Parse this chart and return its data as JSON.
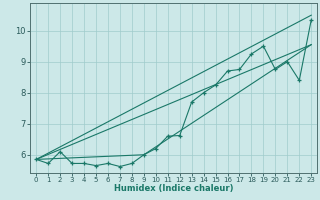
{
  "xlabel": "Humidex (Indice chaleur)",
  "bg_color": "#cce8e8",
  "line_color": "#1a7868",
  "grid_color": "#a0cccc",
  "xlim": [
    -0.5,
    23.5
  ],
  "ylim": [
    5.4,
    10.9
  ],
  "xticks": [
    0,
    1,
    2,
    3,
    4,
    5,
    6,
    7,
    8,
    9,
    10,
    11,
    12,
    13,
    14,
    15,
    16,
    17,
    18,
    19,
    20,
    21,
    22,
    23
  ],
  "yticks": [
    6,
    7,
    8,
    9,
    10
  ],
  "data_x": [
    0,
    1,
    2,
    3,
    4,
    5,
    6,
    7,
    8,
    9,
    10,
    11,
    12,
    13,
    14,
    15,
    16,
    17,
    18,
    19,
    20,
    21,
    22,
    23
  ],
  "data_y": [
    5.85,
    5.72,
    6.1,
    5.72,
    5.72,
    5.65,
    5.72,
    5.62,
    5.72,
    6.0,
    6.2,
    6.6,
    6.62,
    7.7,
    8.0,
    8.25,
    8.7,
    8.75,
    9.25,
    9.5,
    8.75,
    9.0,
    8.4,
    10.35
  ],
  "line1_x": [
    0,
    23
  ],
  "line1_y": [
    5.85,
    10.5
  ],
  "line2_x": [
    0,
    23
  ],
  "line2_y": [
    5.85,
    9.55
  ],
  "line3_x": [
    0,
    9,
    23
  ],
  "line3_y": [
    5.85,
    6.0,
    9.55
  ]
}
